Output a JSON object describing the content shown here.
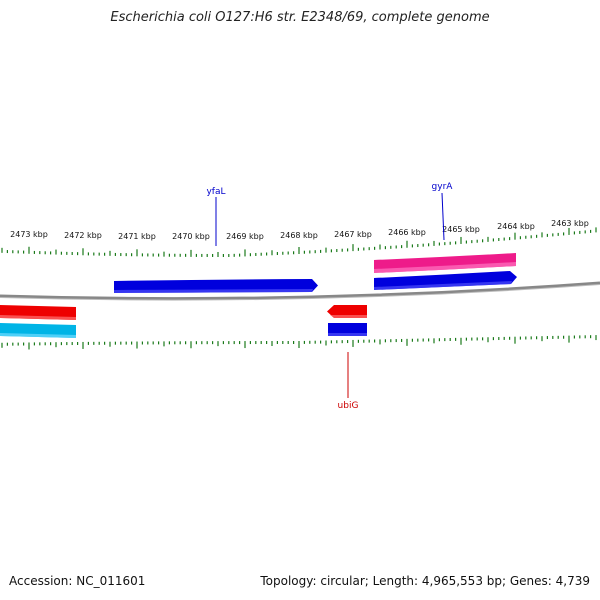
{
  "title": "Escherichia coli O127:H6 str. E2348/69, complete genome",
  "accession": "Accession: NC_011601",
  "stats": "Topology: circular; Length: 4,965,553 bp; Genes: 4,739",
  "colors": {
    "backbone": "#888888",
    "tick": "#1a7a1a",
    "forward_cds": "#0000dd",
    "forward_gene": "#ee1b8a",
    "reverse_cds": "#0000dd",
    "reverse_gene": "#ee0000",
    "reverse_rna": "#00b4e6",
    "label_blue": "#0000cc",
    "label_red": "#cc0000"
  },
  "ticks": [
    "2473 kbp",
    "2472 kbp",
    "2471 kbp",
    "2470 kbp",
    "2469 kbp",
    "2468 kbp",
    "2467 kbp",
    "2466 kbp",
    "2465 kbp",
    "2464 kbp",
    "2463 kbp"
  ],
  "genes": {
    "yfaL": "yfaL",
    "gyrA": "gyrA",
    "ubiG": "ubiG"
  }
}
